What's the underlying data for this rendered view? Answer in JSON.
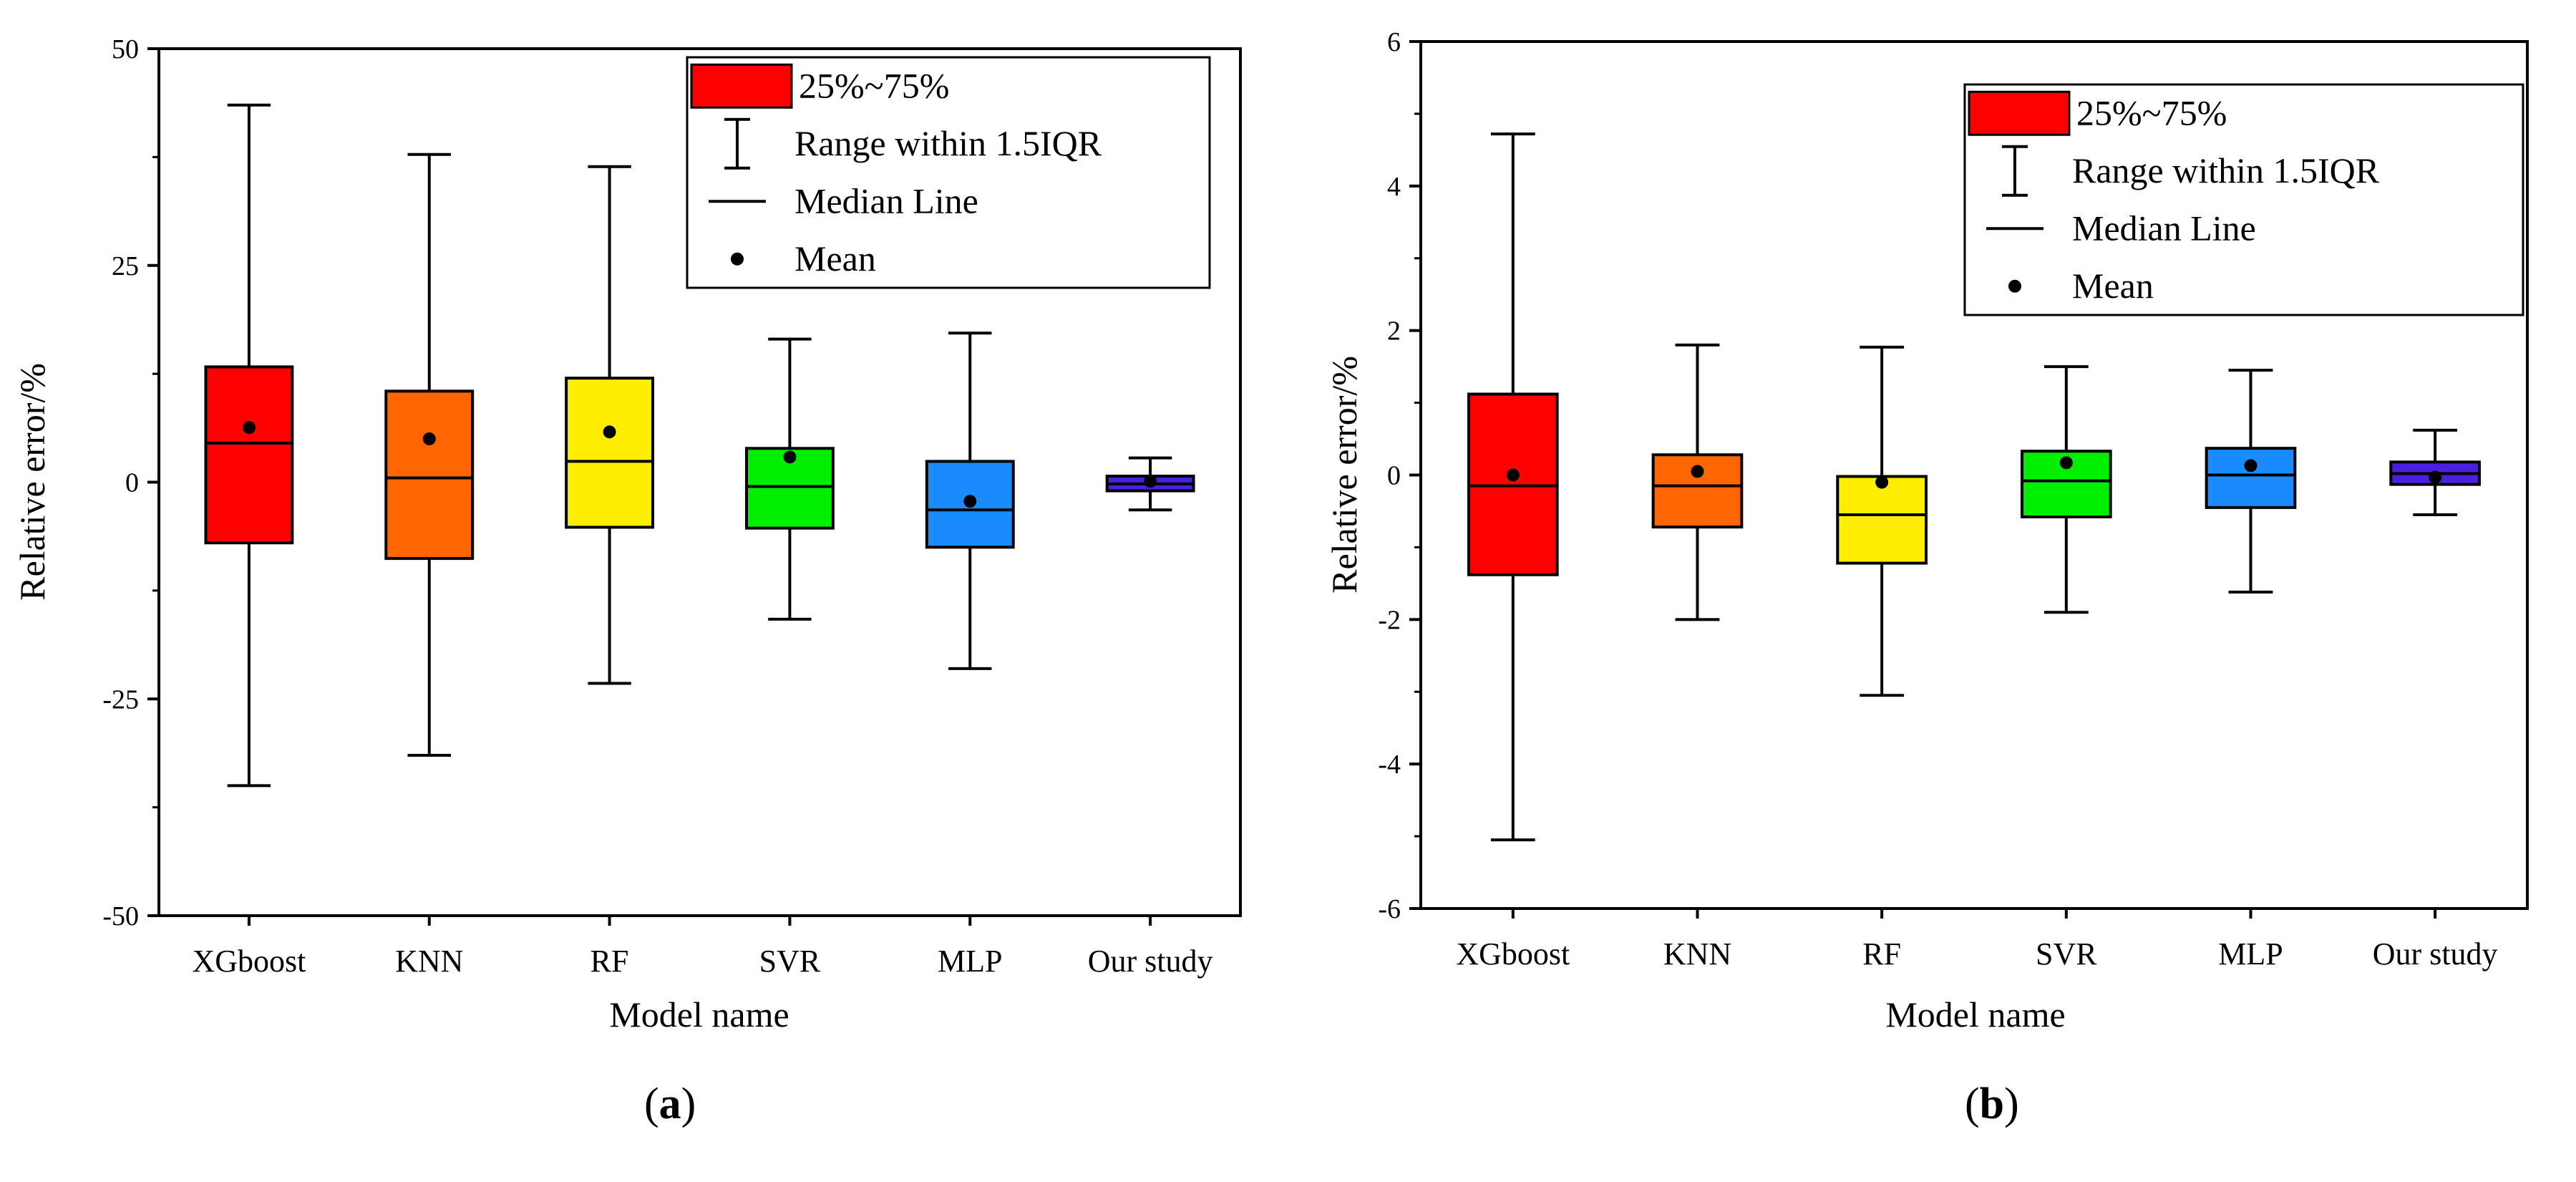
{
  "chart_data": [
    {
      "type": "box",
      "panel_label": "a",
      "xlabel": "Model name",
      "ylabel": "Relative error/%",
      "ylim": [
        -50,
        50
      ],
      "yticks": [
        -50,
        -25,
        0,
        25,
        50
      ],
      "yticks_labels": [
        "-50",
        "-25",
        "0",
        "25",
        "50"
      ],
      "categories": [
        "XGboost",
        "KNN",
        "RF",
        "SVR",
        "MLP",
        "Our study"
      ],
      "colors": [
        "#ff0000",
        "#ff6600",
        "#ffee00",
        "#00ee00",
        "#1a8cff",
        "#4b1fe0"
      ],
      "boxes": [
        {
          "whisker_low": -35.0,
          "q1": -7.0,
          "median": 4.5,
          "q3": 13.3,
          "whisker_high": 43.5,
          "mean": 6.3
        },
        {
          "whisker_low": -31.5,
          "q1": -8.8,
          "median": 0.5,
          "q3": 10.5,
          "whisker_high": 37.8,
          "mean": 5.0
        },
        {
          "whisker_low": -23.2,
          "q1": -5.2,
          "median": 2.4,
          "q3": 12.0,
          "whisker_high": 36.4,
          "mean": 5.8
        },
        {
          "whisker_low": -15.8,
          "q1": -5.3,
          "median": -0.5,
          "q3": 3.9,
          "whisker_high": 16.5,
          "mean": 2.9
        },
        {
          "whisker_low": -21.5,
          "q1": -7.5,
          "median": -3.2,
          "q3": 2.4,
          "whisker_high": 17.2,
          "mean": -2.2
        },
        {
          "whisker_low": -3.2,
          "q1": -1.0,
          "median": -0.2,
          "q3": 0.7,
          "whisker_high": 2.8,
          "mean": 0.1
        }
      ],
      "legend": {
        "position": "top-right",
        "entries": [
          "25%~75%",
          "Range within 1.5IQR",
          "Median Line",
          "Mean"
        ]
      }
    },
    {
      "type": "box",
      "panel_label": "b",
      "xlabel": "Model name",
      "ylabel": "Relative error/%",
      "ylim": [
        -6,
        6
      ],
      "yticks": [
        -6,
        -4,
        -2,
        0,
        2,
        4,
        6
      ],
      "yticks_labels": [
        "-6",
        "-4",
        "-2",
        "0",
        "2",
        "4",
        "6"
      ],
      "categories": [
        "XGboost",
        "KNN",
        "RF",
        "SVR",
        "MLP",
        "Our study"
      ],
      "colors": [
        "#ff0000",
        "#ff6600",
        "#ffee00",
        "#00ee00",
        "#1a8cff",
        "#4b1fe0"
      ],
      "boxes": [
        {
          "whisker_low": -5.05,
          "q1": -1.38,
          "median": -0.15,
          "q3": 1.12,
          "whisker_high": 4.72,
          "mean": 0.0
        },
        {
          "whisker_low": -2.0,
          "q1": -0.72,
          "median": -0.15,
          "q3": 0.28,
          "whisker_high": 1.8,
          "mean": 0.05
        },
        {
          "whisker_low": -3.05,
          "q1": -1.22,
          "median": -0.55,
          "q3": -0.02,
          "whisker_high": 1.77,
          "mean": -0.1
        },
        {
          "whisker_low": -1.9,
          "q1": -0.58,
          "median": -0.08,
          "q3": 0.33,
          "whisker_high": 1.5,
          "mean": 0.17
        },
        {
          "whisker_low": -1.62,
          "q1": -0.45,
          "median": 0.0,
          "q3": 0.37,
          "whisker_high": 1.45,
          "mean": 0.13
        },
        {
          "whisker_low": -0.55,
          "q1": -0.13,
          "median": 0.02,
          "q3": 0.18,
          "whisker_high": 0.62,
          "mean": -0.03
        }
      ],
      "legend": {
        "position": "top-right",
        "entries": [
          "25%~75%",
          "Range within 1.5IQR",
          "Median Line",
          "Mean"
        ]
      }
    }
  ]
}
